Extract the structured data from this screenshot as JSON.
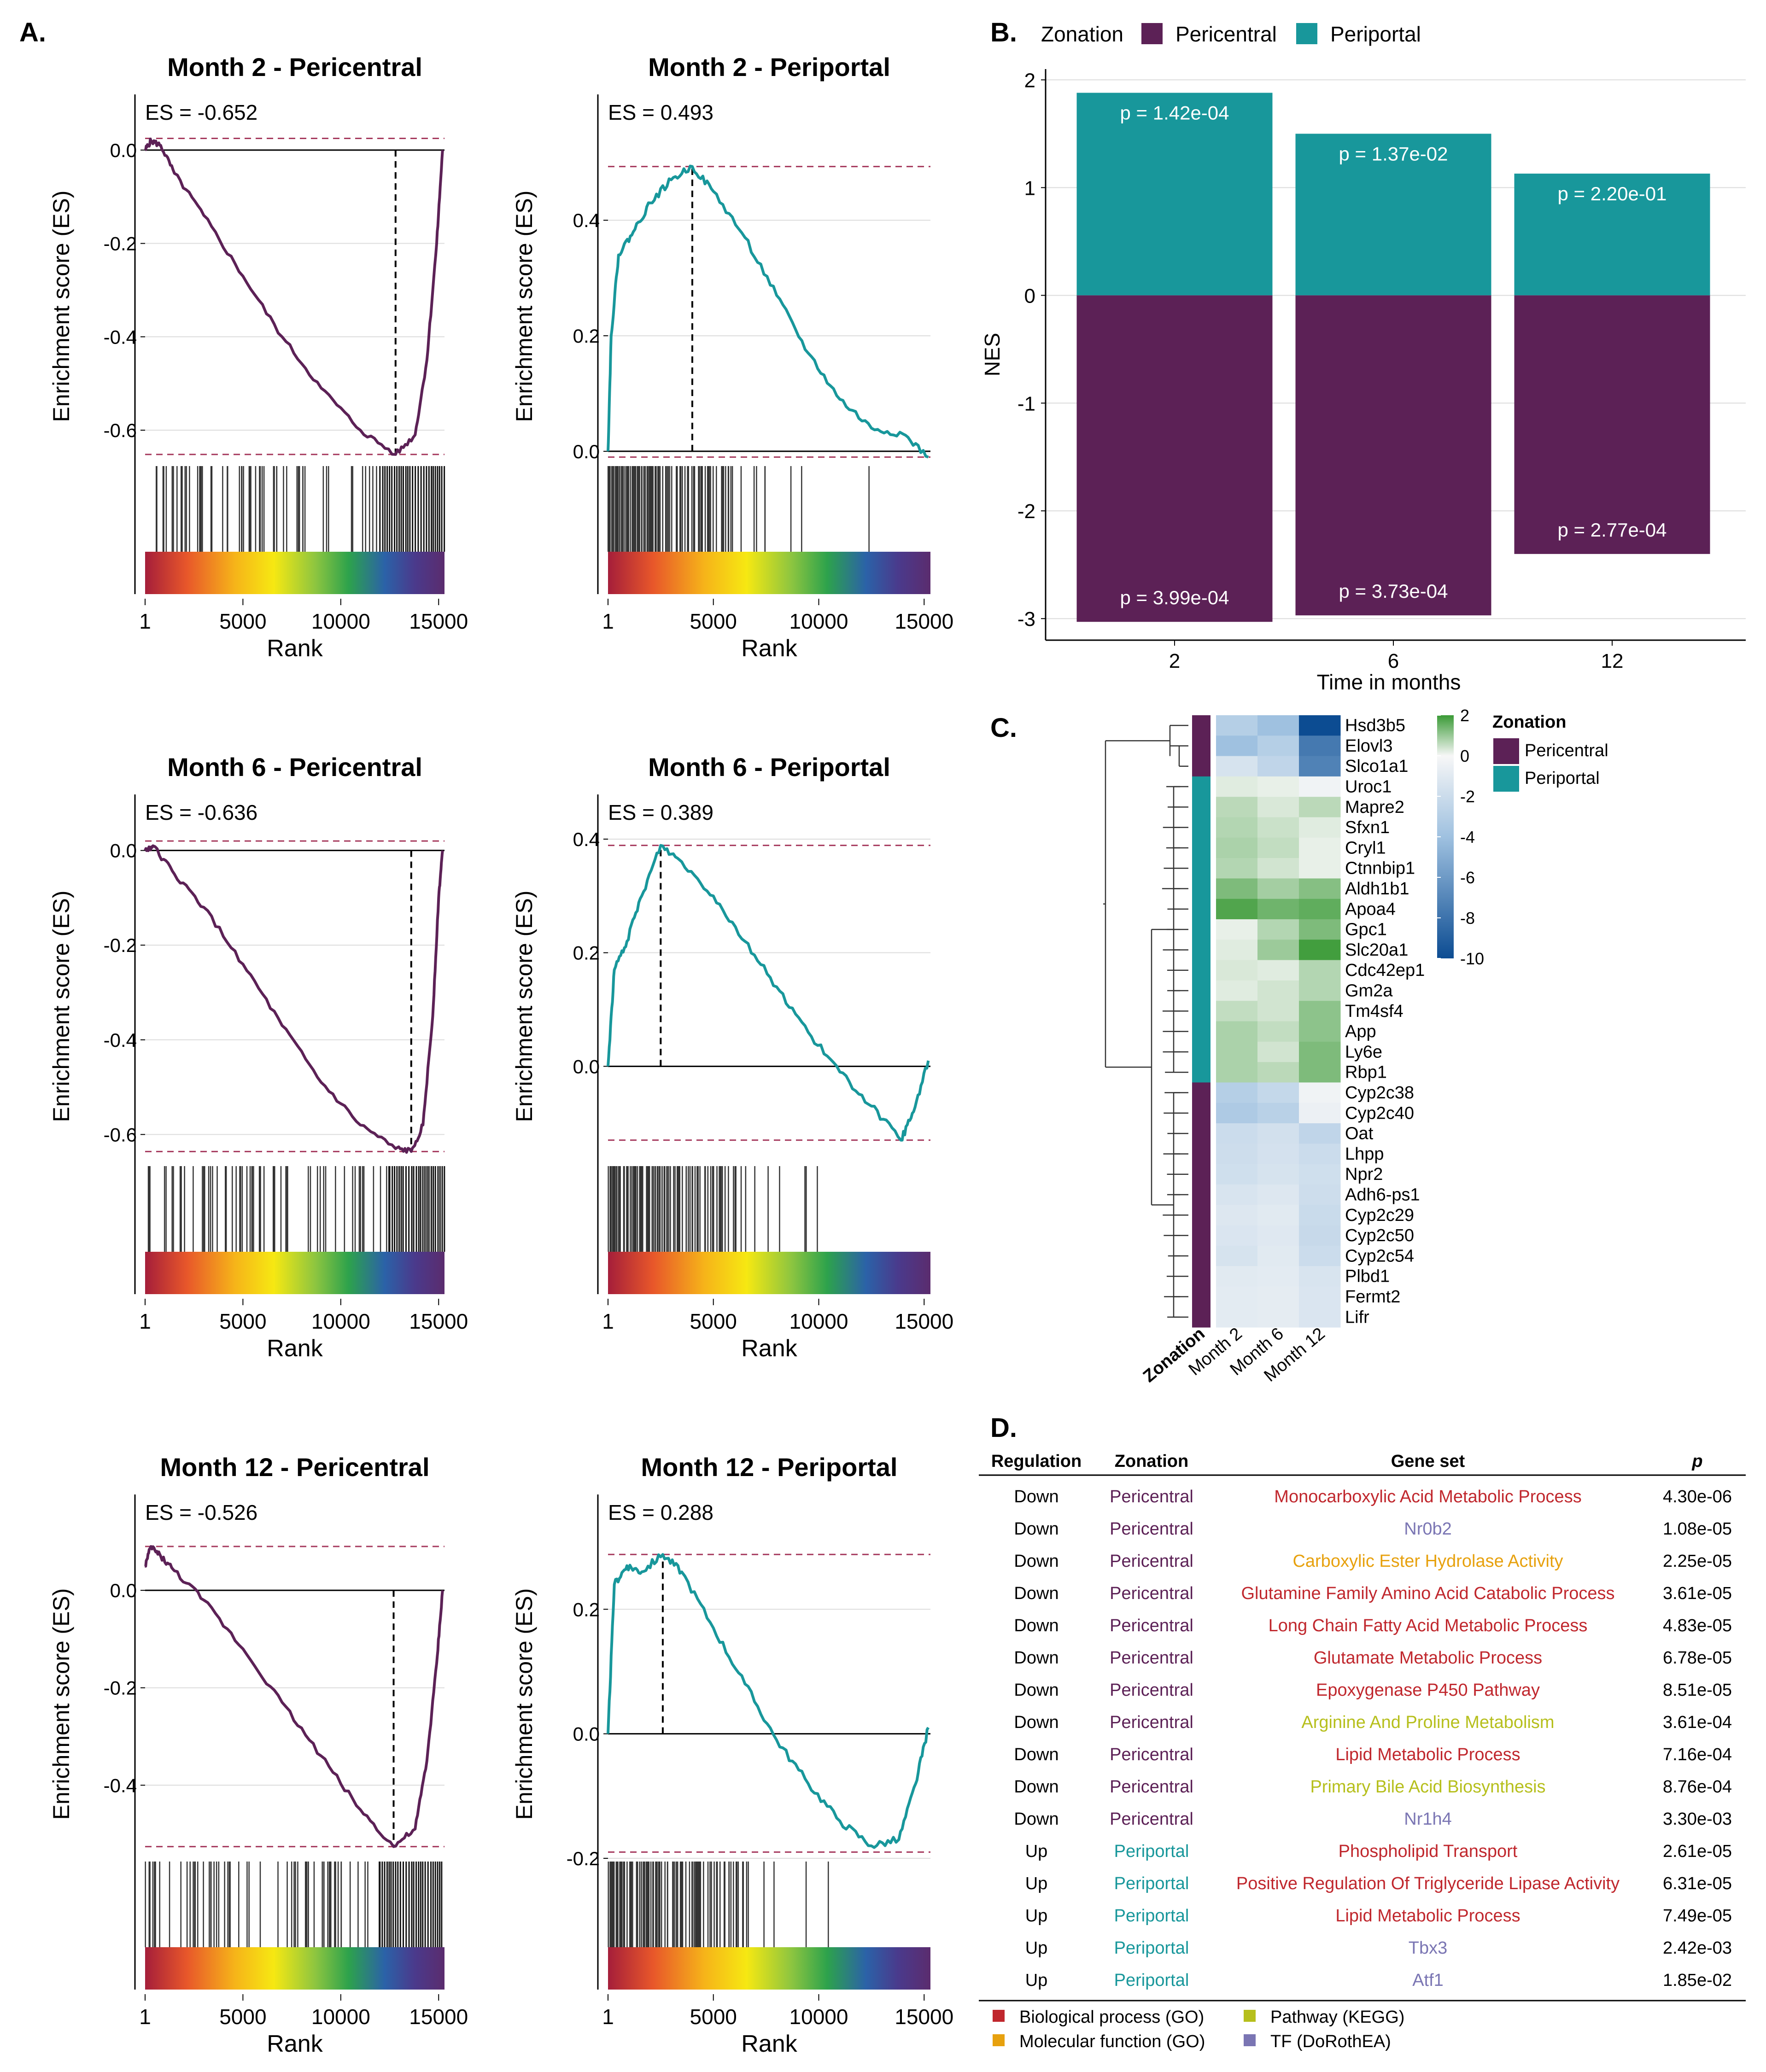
{
  "colors": {
    "pericentral": "#5c2156",
    "periportal": "#18979b",
    "dashed": "#a63a5e",
    "grid": "#dcdcdc",
    "bio": "#c0272d",
    "mol": "#e7a10e",
    "kegg": "#b6bf1c",
    "tf": "#7a75b3"
  },
  "panel_labels": {
    "a": "A.",
    "b": "B.",
    "c": "C.",
    "d": "D."
  },
  "gsea": {
    "ylabel": "Enrichment score (ES)",
    "xlabel": "Rank",
    "xticks": [
      "1",
      "5000",
      "10000",
      "15000"
    ],
    "plots": [
      {
        "title": "Month 2 - Pericentral",
        "es_label": "ES = -0.652",
        "es": -0.652,
        "zonation": "pericentral",
        "yticks": [
          "0.0",
          "-0.2",
          "-0.4",
          "-0.6"
        ],
        "ytick_values": [
          0.0,
          -0.2,
          -0.4,
          -0.6
        ],
        "ylim": [
          -0.67,
          0.06
        ],
        "top_dash": 0.025,
        "peak_rank": 12800,
        "curve": [
          [
            1,
            0.0
          ],
          [
            300,
            0.02
          ],
          [
            800,
            0.01
          ],
          [
            1500,
            -0.05
          ],
          [
            3000,
            -0.14
          ],
          [
            5000,
            -0.27
          ],
          [
            7000,
            -0.4
          ],
          [
            9000,
            -0.51
          ],
          [
            11000,
            -0.6
          ],
          [
            12800,
            -0.652
          ],
          [
            13800,
            -0.61
          ],
          [
            14400,
            -0.45
          ],
          [
            14900,
            -0.2
          ],
          [
            15200,
            0.0
          ]
        ],
        "hits_dense_from": 12000
      },
      {
        "title": "Month 2 - Periportal",
        "es_label": "ES = 0.493",
        "es": 0.493,
        "zonation": "periportal",
        "yticks": [
          "0.4",
          "0.2",
          "0.0"
        ],
        "ytick_values": [
          0.4,
          0.2,
          0.0
        ],
        "ylim": [
          -0.02,
          0.57
        ],
        "top_dash": 0.493,
        "bottom_dash": -0.01,
        "peak_rank": 4000,
        "curve": [
          [
            1,
            0.0
          ],
          [
            150,
            0.2
          ],
          [
            500,
            0.34
          ],
          [
            1200,
            0.38
          ],
          [
            2000,
            0.43
          ],
          [
            3000,
            0.47
          ],
          [
            4000,
            0.493
          ],
          [
            5000,
            0.45
          ],
          [
            6500,
            0.37
          ],
          [
            8000,
            0.27
          ],
          [
            9500,
            0.17
          ],
          [
            11000,
            0.09
          ],
          [
            12500,
            0.04
          ],
          [
            14000,
            0.03
          ],
          [
            15200,
            -0.01
          ]
        ],
        "hits_dense_from": 0
      },
      {
        "title": "Month 6 - Pericentral",
        "es_label": "ES = -0.636",
        "es": -0.636,
        "zonation": "pericentral",
        "yticks": [
          "0.0",
          "-0.2",
          "-0.4",
          "-0.6"
        ],
        "ytick_values": [
          0.0,
          -0.2,
          -0.4,
          -0.6
        ],
        "ylim": [
          -0.66,
          0.06
        ],
        "top_dash": 0.02,
        "peak_rank": 13600,
        "curve": [
          [
            1,
            0.0
          ],
          [
            400,
            0.01
          ],
          [
            1500,
            -0.05
          ],
          [
            3000,
            -0.12
          ],
          [
            5000,
            -0.24
          ],
          [
            7000,
            -0.37
          ],
          [
            9000,
            -0.49
          ],
          [
            11000,
            -0.58
          ],
          [
            12800,
            -0.63
          ],
          [
            13600,
            -0.636
          ],
          [
            14200,
            -0.58
          ],
          [
            14700,
            -0.35
          ],
          [
            15000,
            -0.1
          ],
          [
            15200,
            0.0
          ]
        ],
        "hits_dense_from": 12500
      },
      {
        "title": "Month 6 - Periportal",
        "es_label": "ES = 0.389",
        "es": 0.389,
        "zonation": "periportal",
        "yticks": [
          "0.4",
          "0.2",
          "0.0"
        ],
        "ytick_values": [
          0.4,
          0.2,
          0.0
        ],
        "ylim": [
          -0.17,
          0.43
        ],
        "top_dash": 0.389,
        "bottom_dash": -0.13,
        "peak_rank": 2500,
        "curve": [
          [
            1,
            0.0
          ],
          [
            300,
            0.17
          ],
          [
            900,
            0.22
          ],
          [
            1600,
            0.3
          ],
          [
            2500,
            0.389
          ],
          [
            3500,
            0.36
          ],
          [
            5000,
            0.3
          ],
          [
            6500,
            0.22
          ],
          [
            8000,
            0.14
          ],
          [
            9500,
            0.06
          ],
          [
            11000,
            -0.01
          ],
          [
            12500,
            -0.07
          ],
          [
            13900,
            -0.13
          ],
          [
            14500,
            -0.08
          ],
          [
            15200,
            0.01
          ]
        ],
        "hits_dense_from": 0
      },
      {
        "title": "Month 12 - Pericentral",
        "es_label": "ES = -0.526",
        "es": -0.526,
        "zonation": "pericentral",
        "yticks": [
          "0.0",
          "-0.2",
          "-0.4"
        ],
        "ytick_values": [
          0.0,
          -0.2,
          -0.4
        ],
        "ylim": [
          -0.55,
          0.14
        ],
        "top_dash": 0.09,
        "peak_rank": 12700,
        "curve": [
          [
            1,
            0.05
          ],
          [
            300,
            0.09
          ],
          [
            800,
            0.07
          ],
          [
            1500,
            0.04
          ],
          [
            3000,
            -0.02
          ],
          [
            5000,
            -0.12
          ],
          [
            7000,
            -0.23
          ],
          [
            9000,
            -0.34
          ],
          [
            11000,
            -0.45
          ],
          [
            12700,
            -0.526
          ],
          [
            13800,
            -0.49
          ],
          [
            14400,
            -0.35
          ],
          [
            14900,
            -0.15
          ],
          [
            15200,
            0.0
          ]
        ],
        "hits_dense_from": 12000
      },
      {
        "title": "Month 12 - Periportal",
        "es_label": "ES = 0.288",
        "es": 0.288,
        "zonation": "periportal",
        "yticks": [
          "0.2",
          "0.0",
          "-0.2"
        ],
        "ytick_values": [
          0.2,
          0.0,
          -0.2
        ],
        "ylim": [
          -0.2,
          0.34
        ],
        "top_dash": 0.288,
        "bottom_dash": -0.19,
        "peak_rank": 2600,
        "curve": [
          [
            1,
            0.0
          ],
          [
            300,
            0.24
          ],
          [
            900,
            0.27
          ],
          [
            1600,
            0.26
          ],
          [
            2600,
            0.288
          ],
          [
            3500,
            0.26
          ],
          [
            5000,
            0.17
          ],
          [
            6500,
            0.08
          ],
          [
            8000,
            -0.01
          ],
          [
            9500,
            -0.08
          ],
          [
            11000,
            -0.14
          ],
          [
            12500,
            -0.18
          ],
          [
            13800,
            -0.17
          ],
          [
            14600,
            -0.08
          ],
          [
            15200,
            0.01
          ]
        ],
        "hits_dense_from": 0
      }
    ]
  },
  "chart_data": [
    {
      "type": "bar",
      "title": "",
      "legend_title": "Zonation",
      "legend": [
        "Pericentral",
        "Periportal"
      ],
      "legend_position": "top",
      "categories": [
        "2",
        "6",
        "12"
      ],
      "xlabel": "Time in months",
      "ylabel": "NES",
      "ylim": [
        -3.2,
        2.1
      ],
      "yticks": [
        "2",
        "1",
        "0",
        "-1",
        "-2",
        "-3"
      ],
      "ytick_values": [
        2,
        1,
        0,
        -1,
        -2,
        -3
      ],
      "series": [
        {
          "name": "Periportal",
          "values": [
            1.88,
            1.5,
            1.13
          ],
          "pvalues": [
            "p =  1.42e-04",
            "p =  1.37e-02",
            "p =  2.20e-01"
          ]
        },
        {
          "name": "Pericentral",
          "values": [
            -3.03,
            -2.97,
            -2.4
          ],
          "pvalues": [
            "p =  3.99e-04",
            "p =  3.73e-04",
            "p =  2.77e-04"
          ]
        }
      ]
    },
    {
      "type": "heatmap",
      "columns": [
        "Month 2",
        "Month 6",
        "Month 12"
      ],
      "annotation_label": "Zonation",
      "legend_title": "Zonation",
      "legend": [
        "Pericentral",
        "Periportal"
      ],
      "colorbar_ticks": [
        "2",
        "0",
        "-2",
        "-4",
        "-6",
        "-8",
        "-10"
      ],
      "colorbar_values": [
        2,
        0,
        -2,
        -4,
        -6,
        -8,
        -10
      ],
      "rows": [
        {
          "gene": "Hsd3b5",
          "zone": "pericentral",
          "values": [
            -3.0,
            -4.0,
            -10.5
          ]
        },
        {
          "gene": "Elovl3",
          "zone": "pericentral",
          "values": [
            -4.0,
            -3.0,
            -8.0
          ]
        },
        {
          "gene": "Slco1a1",
          "zone": "pericentral",
          "values": [
            -1.5,
            -2.5,
            -7.5
          ]
        },
        {
          "gene": "Uroc1",
          "zone": "periportal",
          "values": [
            0.3,
            0.2,
            -0.3
          ]
        },
        {
          "gene": "Mapre2",
          "zone": "periportal",
          "values": [
            0.8,
            0.4,
            0.8
          ]
        },
        {
          "gene": "Sfxn1",
          "zone": "periportal",
          "values": [
            0.9,
            0.6,
            0.3
          ]
        },
        {
          "gene": "Cryl1",
          "zone": "periportal",
          "values": [
            1.0,
            0.7,
            0.2
          ]
        },
        {
          "gene": "Ctnnbip1",
          "zone": "periportal",
          "values": [
            0.9,
            0.5,
            0.2
          ]
        },
        {
          "gene": "Aldh1b1",
          "zone": "periportal",
          "values": [
            1.6,
            1.1,
            1.5
          ]
        },
        {
          "gene": "Apoa4",
          "zone": "periportal",
          "values": [
            2.2,
            1.8,
            2.0
          ]
        },
        {
          "gene": "Gpc1",
          "zone": "periportal",
          "values": [
            0.2,
            0.9,
            1.6
          ]
        },
        {
          "gene": "Slc20a1",
          "zone": "periportal",
          "values": [
            0.3,
            1.2,
            2.4
          ]
        },
        {
          "gene": "Cdc42ep1",
          "zone": "periportal",
          "values": [
            0.4,
            0.3,
            0.9
          ]
        },
        {
          "gene": "Gm2a",
          "zone": "periportal",
          "values": [
            0.3,
            0.5,
            0.9
          ]
        },
        {
          "gene": "Tm4sf4",
          "zone": "periportal",
          "values": [
            0.7,
            0.5,
            1.4
          ]
        },
        {
          "gene": "App",
          "zone": "periportal",
          "values": [
            1.0,
            0.7,
            1.4
          ]
        },
        {
          "gene": "Ly6e",
          "zone": "periportal",
          "values": [
            1.0,
            0.5,
            1.6
          ]
        },
        {
          "gene": "Rbp1",
          "zone": "periportal",
          "values": [
            1.0,
            0.8,
            1.6
          ]
        },
        {
          "gene": "Cyp2c38",
          "zone": "pericentral",
          "values": [
            -3.0,
            -2.3,
            -0.3
          ]
        },
        {
          "gene": "Cyp2c40",
          "zone": "pericentral",
          "values": [
            -3.3,
            -2.8,
            -0.5
          ]
        },
        {
          "gene": "Oat",
          "zone": "pericentral",
          "values": [
            -2.0,
            -1.7,
            -2.5
          ]
        },
        {
          "gene": "Lhpp",
          "zone": "pericentral",
          "values": [
            -1.9,
            -1.6,
            -2.0
          ]
        },
        {
          "gene": "Npr2",
          "zone": "pericentral",
          "values": [
            -1.8,
            -1.5,
            -1.8
          ]
        },
        {
          "gene": "Adh6-ps1",
          "zone": "pericentral",
          "values": [
            -1.4,
            -1.2,
            -1.9
          ]
        },
        {
          "gene": "Cyp2c29",
          "zone": "pericentral",
          "values": [
            -1.2,
            -1.0,
            -2.1
          ]
        },
        {
          "gene": "Cyp2c50",
          "zone": "pericentral",
          "values": [
            -1.3,
            -1.1,
            -2.2
          ]
        },
        {
          "gene": "Cyp2c54",
          "zone": "pericentral",
          "values": [
            -1.5,
            -1.0,
            -2.0
          ]
        },
        {
          "gene": "Plbd1",
          "zone": "pericentral",
          "values": [
            -1.0,
            -0.9,
            -1.4
          ]
        },
        {
          "gene": "Fermt2",
          "zone": "pericentral",
          "values": [
            -0.9,
            -0.8,
            -1.3
          ]
        },
        {
          "gene": "Lifr",
          "zone": "pericentral",
          "values": [
            -0.9,
            -0.8,
            -1.3
          ]
        }
      ]
    },
    {
      "type": "table",
      "headers": [
        "Regulation",
        "Zonation",
        "Gene set",
        "p"
      ],
      "rows": [
        {
          "regulation": "Down",
          "zonation": "Pericentral",
          "gene_set": "Monocarboxylic Acid Metabolic Process",
          "category": "bio",
          "p": "4.30e-06"
        },
        {
          "regulation": "Down",
          "zonation": "Pericentral",
          "gene_set": "Nr0b2",
          "category": "tf",
          "p": "1.08e-05"
        },
        {
          "regulation": "Down",
          "zonation": "Pericentral",
          "gene_set": "Carboxylic Ester Hydrolase Activity",
          "category": "mol",
          "p": "2.25e-05"
        },
        {
          "regulation": "Down",
          "zonation": "Pericentral",
          "gene_set": "Glutamine Family Amino Acid Catabolic Process",
          "category": "bio",
          "p": "3.61e-05"
        },
        {
          "regulation": "Down",
          "zonation": "Pericentral",
          "gene_set": "Long Chain Fatty Acid Metabolic Process",
          "category": "bio",
          "p": "4.83e-05"
        },
        {
          "regulation": "Down",
          "zonation": "Pericentral",
          "gene_set": "Glutamate Metabolic Process",
          "category": "bio",
          "p": "6.78e-05"
        },
        {
          "regulation": "Down",
          "zonation": "Pericentral",
          "gene_set": "Epoxygenase P450 Pathway",
          "category": "bio",
          "p": "8.51e-05"
        },
        {
          "regulation": "Down",
          "zonation": "Pericentral",
          "gene_set": "Arginine And Proline Metabolism",
          "category": "kegg",
          "p": "3.61e-04"
        },
        {
          "regulation": "Down",
          "zonation": "Pericentral",
          "gene_set": "Lipid Metabolic Process",
          "category": "bio",
          "p": "7.16e-04"
        },
        {
          "regulation": "Down",
          "zonation": "Pericentral",
          "gene_set": "Primary Bile Acid Biosynthesis",
          "category": "kegg",
          "p": "8.76e-04"
        },
        {
          "regulation": "Down",
          "zonation": "Pericentral",
          "gene_set": "Nr1h4",
          "category": "tf",
          "p": "3.30e-03"
        },
        {
          "regulation": "Up",
          "zonation": "Periportal",
          "gene_set": "Phospholipid Transport",
          "category": "bio",
          "p": "2.61e-05"
        },
        {
          "regulation": "Up",
          "zonation": "Periportal",
          "gene_set": "Positive Regulation Of Triglyceride Lipase Activity",
          "category": "bio",
          "p": "6.31e-05"
        },
        {
          "regulation": "Up",
          "zonation": "Periportal",
          "gene_set": "Lipid Metabolic Process",
          "category": "bio",
          "p": "7.49e-05"
        },
        {
          "regulation": "Up",
          "zonation": "Periportal",
          "gene_set": "Tbx3",
          "category": "tf",
          "p": "2.42e-03"
        },
        {
          "regulation": "Up",
          "zonation": "Periportal",
          "gene_set": "Atf1",
          "category": "tf",
          "p": "1.85e-02"
        }
      ],
      "legend": [
        {
          "label": "Biological process (GO)",
          "category": "bio"
        },
        {
          "label": "Pathway (KEGG)",
          "category": "kegg"
        },
        {
          "label": "Molecular function (GO)",
          "category": "mol"
        },
        {
          "label": "TF (DoRothEA)",
          "category": "tf"
        }
      ]
    }
  ]
}
